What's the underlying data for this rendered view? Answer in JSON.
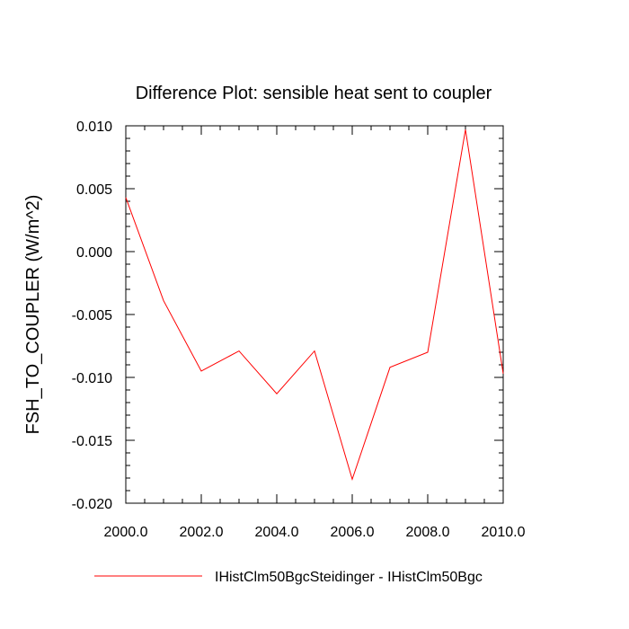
{
  "chart_data": {
    "type": "line",
    "title": "Difference Plot: sensible heat sent to coupler",
    "xlabel": "",
    "ylabel": "FSH_TO_COUPLER  (W/m^2)",
    "xlim": [
      2000,
      2010
    ],
    "ylim": [
      -0.02,
      0.01
    ],
    "x_ticks": [
      2000,
      2002,
      2004,
      2006,
      2008,
      2010
    ],
    "x_tick_labels": [
      "2000.0",
      "2002.0",
      "2004.0",
      "2006.0",
      "2008.0",
      "2010.0"
    ],
    "y_ticks": [
      0.01,
      0.005,
      0.0,
      -0.005,
      -0.01,
      -0.015,
      -0.02
    ],
    "y_tick_labels": [
      "0.010",
      "0.005",
      "0.000",
      "-0.005",
      "-0.010",
      "-0.015",
      "-0.020"
    ],
    "grid": false,
    "legend_position": "bottom",
    "series": [
      {
        "name": "IHistClm50BgcSteidinger - IHistClm50Bgc",
        "color": "#ff0000",
        "x": [
          2000,
          2001,
          2002,
          2003,
          2004,
          2005,
          2006,
          2007,
          2008,
          2009,
          2010
        ],
        "y": [
          0.0043,
          -0.0039,
          -0.0095,
          -0.0079,
          -0.0113,
          -0.0079,
          -0.0181,
          -0.0092,
          -0.008,
          0.0097,
          -0.0097
        ]
      }
    ]
  }
}
